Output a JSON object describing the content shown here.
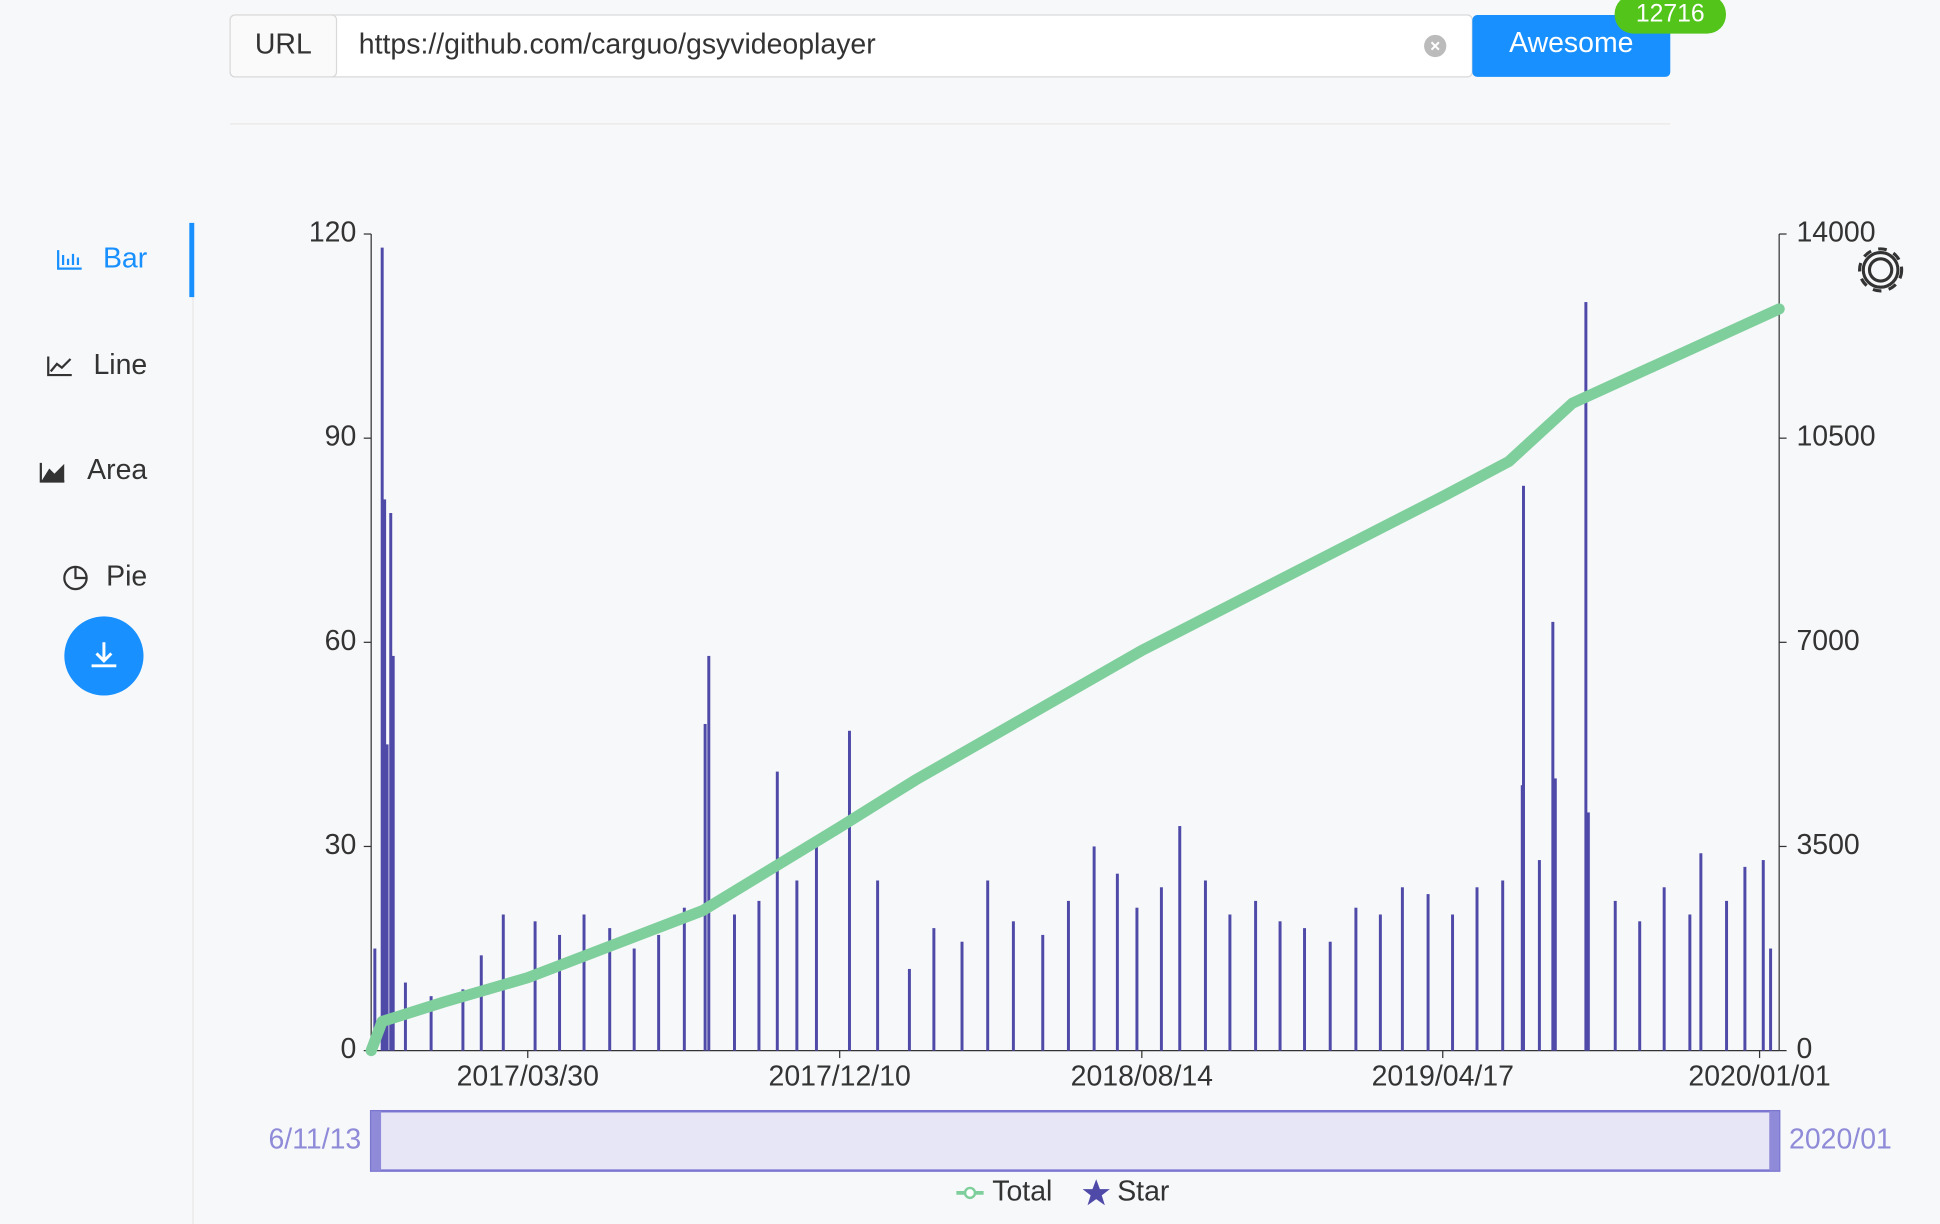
{
  "url_bar": {
    "label": "URL",
    "value": "https://github.com/carguo/gsyvideoplayer",
    "button": "Awesome",
    "badge": 12716
  },
  "menu": [
    "Bar",
    "Line",
    "Area",
    "Pie"
  ],
  "chart_data": {
    "type": "bar",
    "xlim": [
      "2016/11/22",
      "2020/01/17"
    ],
    "xticks": [
      "2017/03/30",
      "2017/12/10",
      "2018/08/14",
      "2019/04/17",
      "2020/01/01"
    ],
    "ylim": [
      0,
      120
    ],
    "yticks": [
      0,
      30,
      60,
      90,
      120
    ],
    "y2lim": [
      0,
      14000
    ],
    "y2ticks": [
      0,
      3500,
      7000,
      10500,
      14000
    ],
    "zoom_start_label": "6/11/13",
    "zoom_end_label": "2020/01",
    "series": [
      {
        "name": "Total",
        "type": "line",
        "axis": "y2",
        "color": "#7fcf9c",
        "x": [
          "2016/11/22",
          "2016/12/01",
          "2017/01/20",
          "2017/03/30",
          "2017/08/20",
          "2017/12/10",
          "2018/02/10",
          "2018/08/14",
          "2019/04/17",
          "2019/06/10",
          "2019/08/01",
          "2020/01/17"
        ],
        "values": [
          0,
          500,
          830,
          1250,
          2400,
          3830,
          4640,
          6860,
          9500,
          10100,
          11100,
          12716
        ]
      },
      {
        "name": "Star",
        "type": "bar",
        "color": "#4f4aa8",
        "x": [
          "2016/11/25",
          "2016/12/01",
          "2016/12/03",
          "2016/12/05",
          "2016/12/08",
          "2016/12/10",
          "2016/12/20",
          "2017/01/10",
          "2017/02/05",
          "2017/02/20",
          "2017/03/10",
          "2017/04/05",
          "2017/04/25",
          "2017/05/15",
          "2017/06/05",
          "2017/06/25",
          "2017/07/15",
          "2017/08/05",
          "2017/08/22",
          "2017/08/25",
          "2017/09/15",
          "2017/10/05",
          "2017/10/20",
          "2017/11/05",
          "2017/11/21",
          "2017/12/18",
          "2018/01/10",
          "2018/02/05",
          "2018/02/25",
          "2018/03/20",
          "2018/04/10",
          "2018/05/01",
          "2018/05/25",
          "2018/06/15",
          "2018/07/06",
          "2018/07/25",
          "2018/08/10",
          "2018/08/30",
          "2018/09/14",
          "2018/10/05",
          "2018/10/25",
          "2018/11/15",
          "2018/12/05",
          "2018/12/25",
          "2019/01/15",
          "2019/02/05",
          "2019/02/25",
          "2019/03/15",
          "2019/04/05",
          "2019/04/25",
          "2019/05/15",
          "2019/06/05",
          "2019/06/21",
          "2019/06/22",
          "2019/07/05",
          "2019/07/16",
          "2019/07/18",
          "2019/08/12",
          "2019/08/14",
          "2019/09/05",
          "2019/09/25",
          "2019/10/15",
          "2019/11/05",
          "2019/11/14",
          "2019/12/05",
          "2019/12/20",
          "2020/01/04",
          "2020/01/10"
        ],
        "values": [
          15,
          118,
          81,
          45,
          79,
          58,
          10,
          8,
          9,
          14,
          20,
          19,
          17,
          20,
          18,
          15,
          17,
          21,
          48,
          58,
          20,
          22,
          41,
          25,
          30,
          47,
          25,
          12,
          18,
          16,
          25,
          19,
          17,
          22,
          30,
          26,
          21,
          24,
          33,
          25,
          20,
          22,
          19,
          18,
          16,
          21,
          20,
          24,
          23,
          20,
          24,
          25,
          39,
          83,
          28,
          63,
          40,
          110,
          35,
          22,
          19,
          24,
          20,
          29,
          22,
          27,
          28,
          15
        ]
      }
    ]
  }
}
